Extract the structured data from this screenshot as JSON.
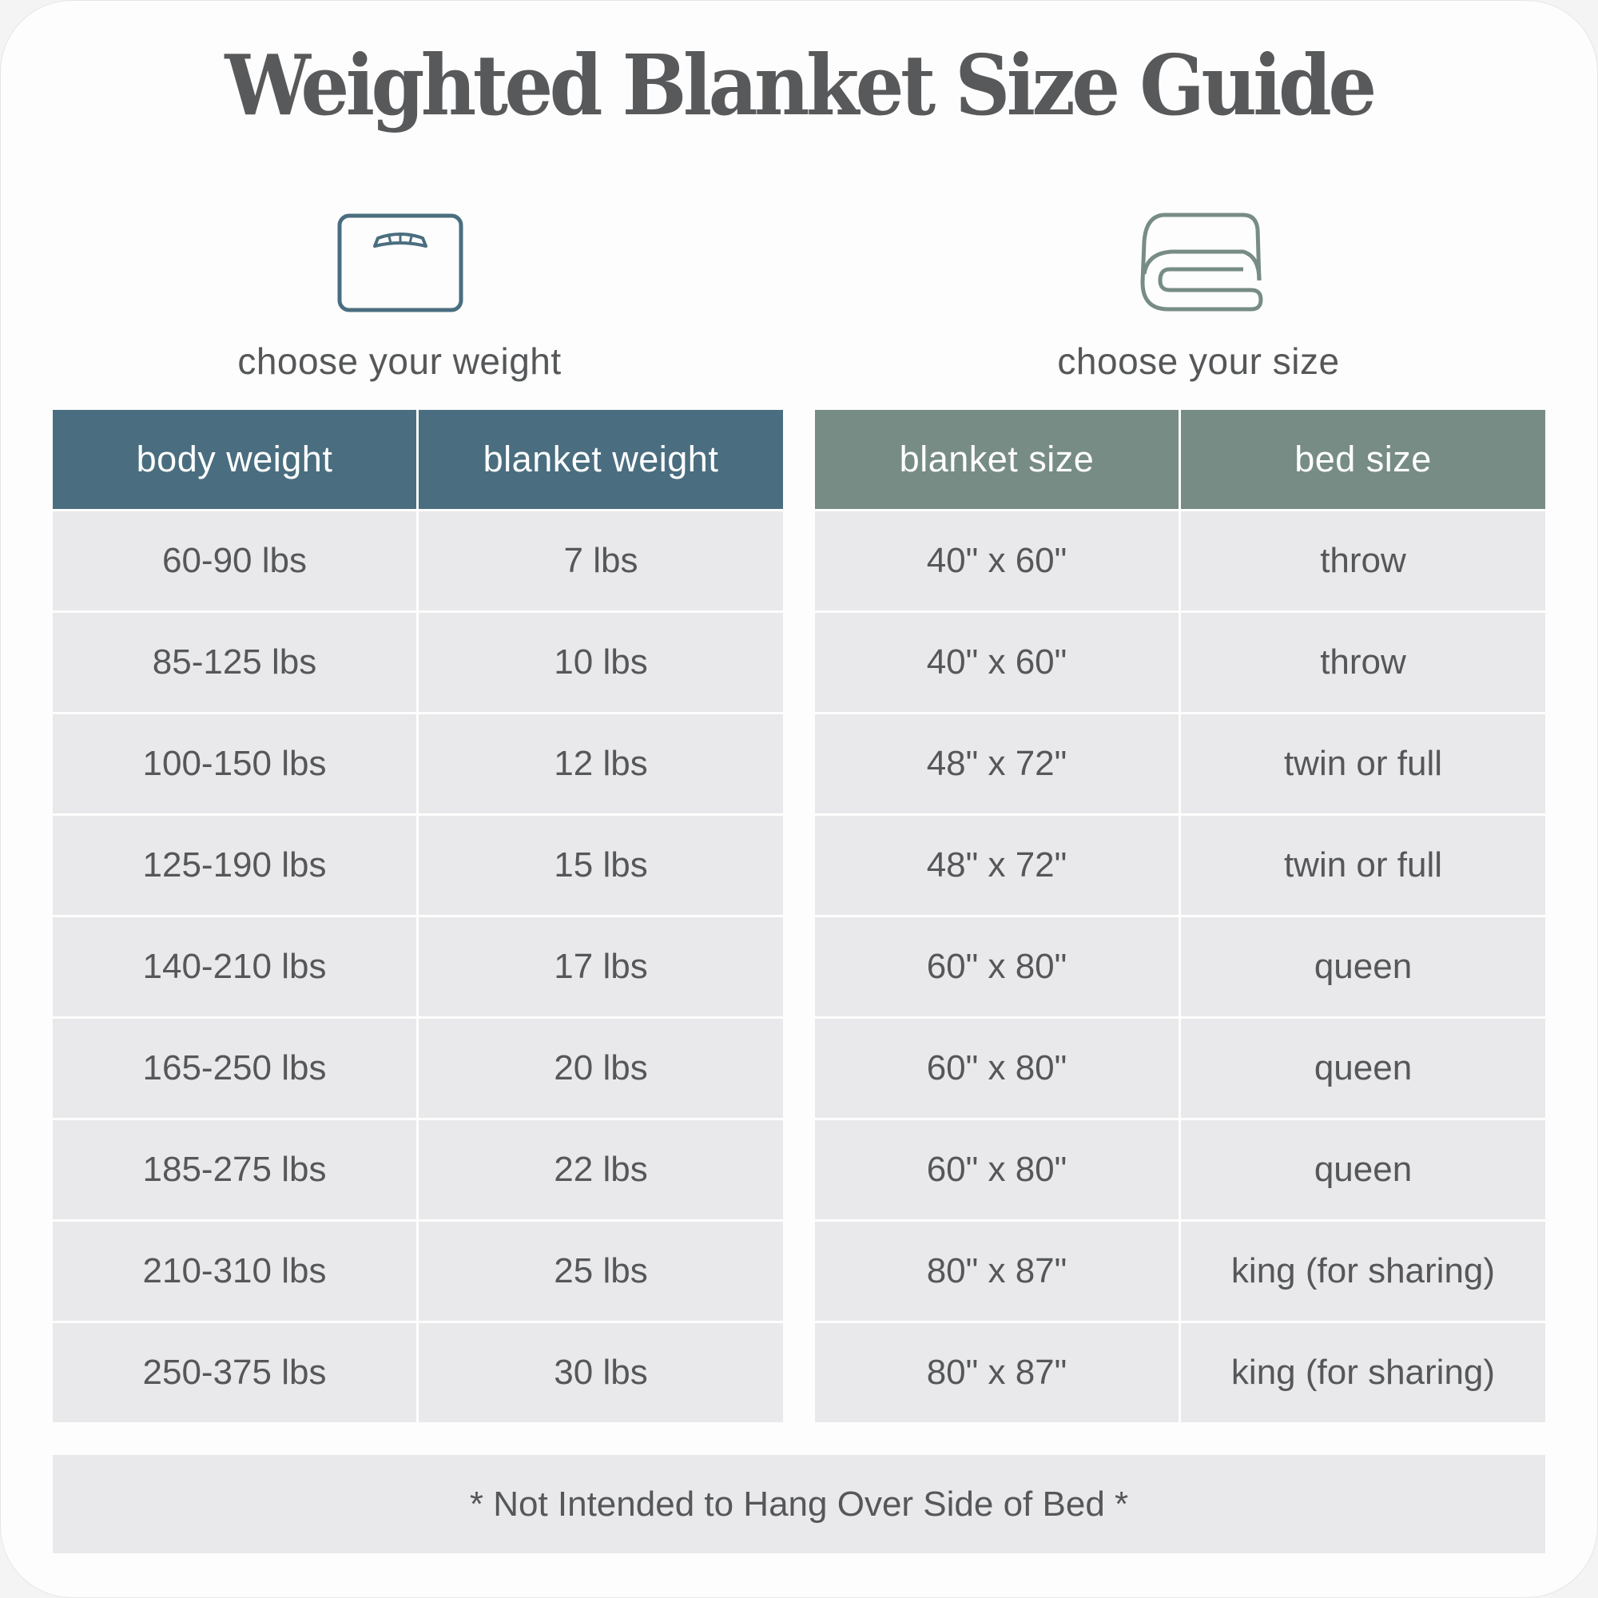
{
  "title": "Weighted Blanket Size Guide",
  "colors": {
    "weight_header": "#4a6e80",
    "size_header": "#778c85",
    "cell_bg": "#e9e9eb",
    "text": "#555759"
  },
  "weight_section": {
    "icon": "bathroom-scale-icon",
    "subtitle": "choose your weight",
    "headers": [
      "body weight",
      "blanket weight"
    ],
    "rows": [
      [
        "60-90 lbs",
        "7 lbs"
      ],
      [
        "85-125 lbs",
        "10 lbs"
      ],
      [
        "100-150 lbs",
        "12 lbs"
      ],
      [
        "125-190 lbs",
        "15 lbs"
      ],
      [
        "140-210 lbs",
        "17 lbs"
      ],
      [
        "165-250 lbs",
        "20 lbs"
      ],
      [
        "185-275 lbs",
        "22 lbs"
      ],
      [
        "210-310 lbs",
        "25 lbs"
      ],
      [
        "250-375 lbs",
        "30 lbs"
      ]
    ]
  },
  "size_section": {
    "icon": "folded-blanket-icon",
    "subtitle": "choose your size",
    "headers": [
      "blanket size",
      "bed size"
    ],
    "rows": [
      [
        "40\" x 60\"",
        "throw"
      ],
      [
        "40\" x 60\"",
        "throw"
      ],
      [
        "48\" x 72\"",
        "twin or full"
      ],
      [
        "48\" x 72\"",
        "twin or full"
      ],
      [
        "60\" x 80\"",
        "queen"
      ],
      [
        "60\" x 80\"",
        "queen"
      ],
      [
        "60\" x 80\"",
        "queen"
      ],
      [
        "80\" x 87\"",
        "king (for sharing)"
      ],
      [
        "80\" x 87\"",
        "king (for sharing)"
      ]
    ]
  },
  "footer_note": "* Not Intended to Hang Over Side of Bed *"
}
